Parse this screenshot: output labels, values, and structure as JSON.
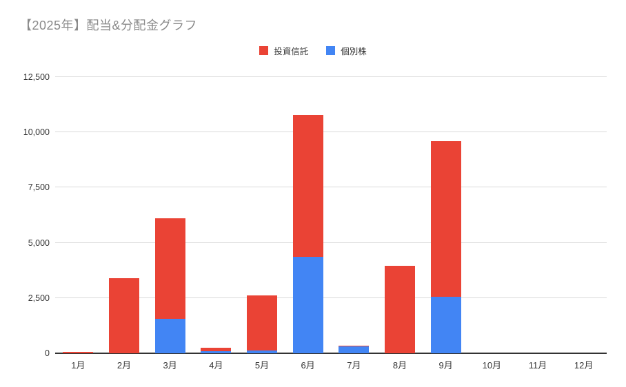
{
  "chart_data": {
    "type": "bar",
    "stacked": true,
    "title": "【2025年】配当&分配金グラフ",
    "categories": [
      "1月",
      "2月",
      "3月",
      "4月",
      "5月",
      "6月",
      "7月",
      "8月",
      "9月",
      "10月",
      "11月",
      "12月"
    ],
    "series": [
      {
        "name": "投資信託",
        "color": "#EA4335",
        "values": [
          60,
          3400,
          4530,
          170,
          2500,
          6430,
          50,
          3950,
          7030,
          0,
          0,
          0
        ]
      },
      {
        "name": "個別株",
        "color": "#4285F4",
        "values": [
          0,
          0,
          1570,
          80,
          120,
          4370,
          300,
          0,
          2570,
          0,
          0,
          0
        ]
      }
    ],
    "totals": [
      60,
      3400,
      6100,
      250,
      2620,
      10800,
      350,
      3950,
      9600,
      0,
      0,
      0
    ],
    "xlabel": "",
    "ylabel": "",
    "ylim": [
      0,
      12500
    ],
    "ytick_values": [
      0,
      2500,
      5000,
      7500,
      10000,
      12500
    ],
    "ytick_labels": [
      "0",
      "2,500",
      "5,000",
      "7,500",
      "10,000",
      "12,500"
    ],
    "grid": true,
    "legend_position": "top",
    "stack_order_bottom_to_top": [
      "個別株",
      "投資信託"
    ]
  },
  "colors": {
    "title": "#8a8a8a",
    "gridline": "#d9d9d9",
    "axis": "#333333",
    "tick_label": "#333333",
    "background": "#ffffff"
  }
}
